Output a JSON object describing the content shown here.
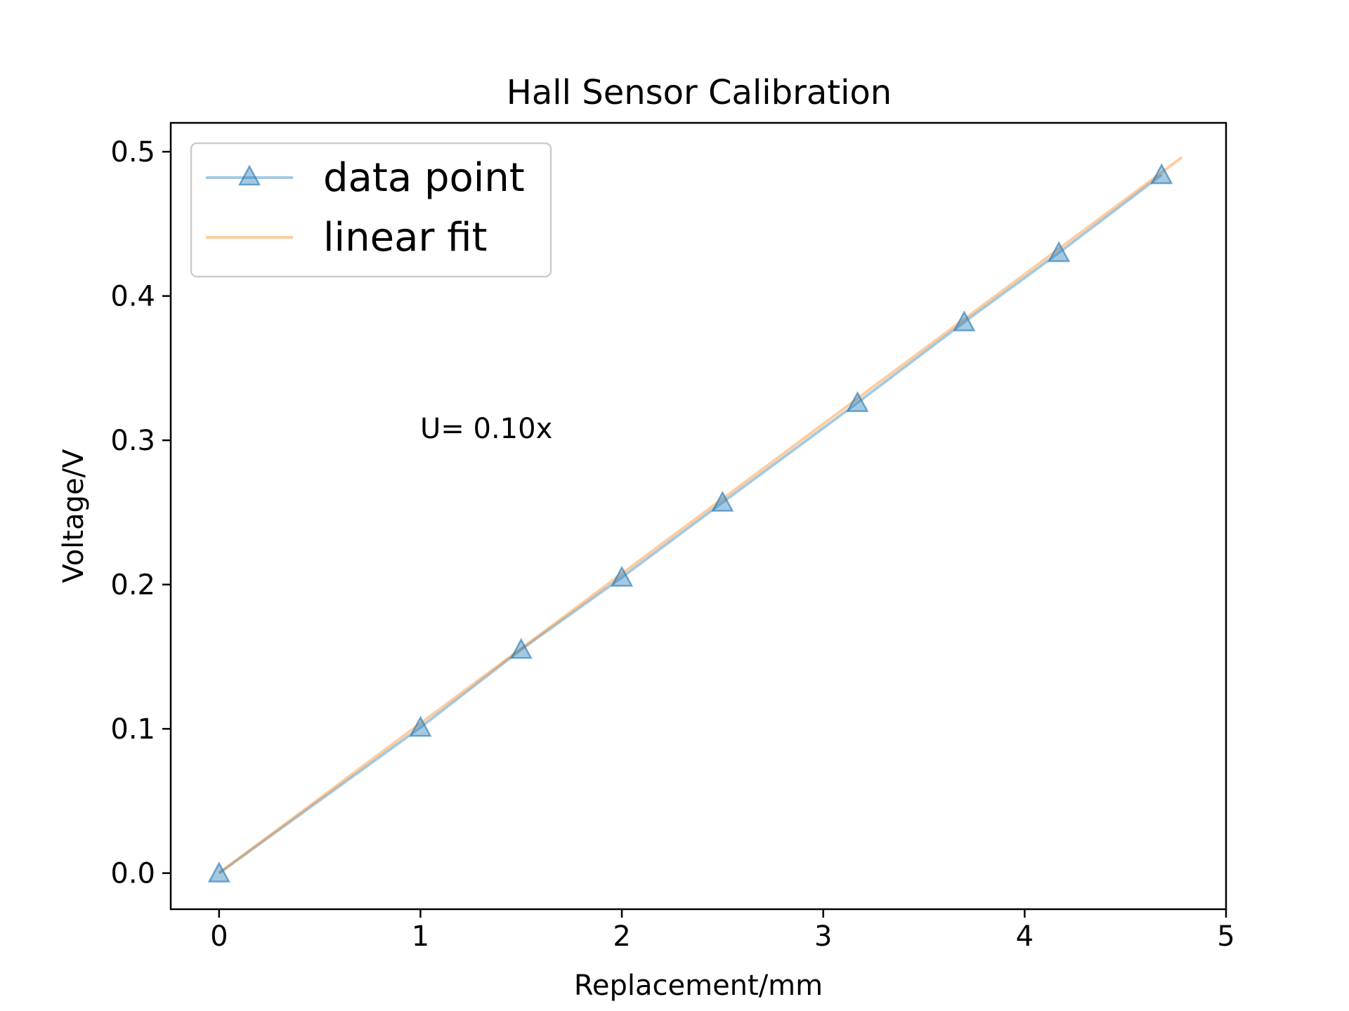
{
  "chart_data": {
    "type": "line",
    "title": "Hall Sensor Calibration",
    "xlabel": "Replacement/mm",
    "ylabel": "Voltage/V",
    "xlim": [
      -0.24,
      5.0
    ],
    "ylim": [
      -0.025,
      0.52
    ],
    "xticks": [
      0,
      1,
      2,
      3,
      4,
      5
    ],
    "xtick_labels": [
      "0",
      "1",
      "2",
      "3",
      "4",
      "5"
    ],
    "yticks": [
      0.0,
      0.1,
      0.2,
      0.3,
      0.4,
      0.5
    ],
    "ytick_labels": [
      "0.0",
      "0.1",
      "0.2",
      "0.3",
      "0.4",
      "0.5"
    ],
    "grid": false,
    "legend_position": "top-left",
    "annotation": "U= 0.10x",
    "series": [
      {
        "name": "data point",
        "kind": "line-with-triangle-markers",
        "color": "#1f77b4",
        "x": [
          0,
          1.0,
          1.5,
          2.0,
          2.5,
          3.17,
          3.7,
          4.17,
          4.68
        ],
        "y": [
          0.0,
          0.101,
          0.155,
          0.205,
          0.257,
          0.326,
          0.382,
          0.43,
          0.484
        ]
      },
      {
        "name": "linear fit",
        "kind": "line",
        "color": "#ff7f0e",
        "x": [
          0,
          4.78
        ],
        "y": [
          0.0,
          0.496
        ]
      }
    ]
  }
}
